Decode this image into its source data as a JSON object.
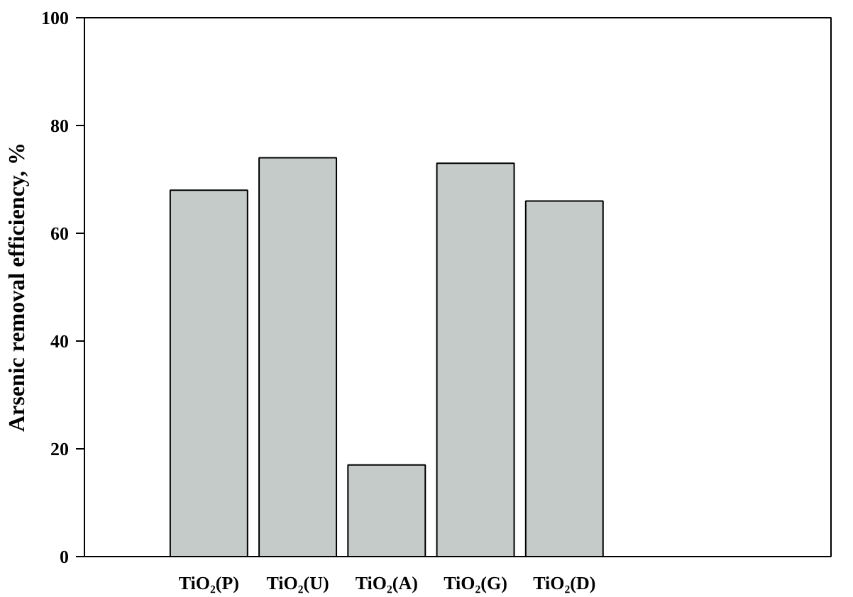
{
  "chart_data": {
    "type": "bar",
    "ylabel": "Arsenic removal efficiency, %",
    "categories": [
      "TiO₂(P)",
      "TiO₂(U)",
      "TiO₂(A)",
      "TiO₂(G)",
      "TiO₂(D)"
    ],
    "values": [
      68,
      74,
      17,
      73,
      66
    ],
    "color": "#c5cbc8",
    "ylim": [
      0,
      100
    ],
    "yticks": [
      0,
      20,
      40,
      60,
      80,
      100
    ],
    "grid": false
  }
}
